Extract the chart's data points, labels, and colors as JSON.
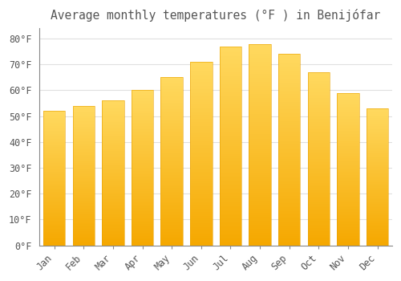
{
  "title": "Average monthly temperatures (°F ) in Benijófar",
  "months": [
    "Jan",
    "Feb",
    "Mar",
    "Apr",
    "May",
    "Jun",
    "Jul",
    "Aug",
    "Sep",
    "Oct",
    "Nov",
    "Dec"
  ],
  "values": [
    52,
    54,
    56,
    60,
    65,
    71,
    77,
    78,
    74,
    67,
    59,
    53
  ],
  "bar_color_top": "#FFD966",
  "bar_color_bottom": "#F5A800",
  "bar_color_mid": "#FFC200",
  "background_color": "#FFFFFF",
  "grid_color": "#E0E0E0",
  "text_color": "#555555",
  "ylim": [
    0,
    84
  ],
  "yticks": [
    0,
    10,
    20,
    30,
    40,
    50,
    60,
    70,
    80
  ],
  "title_fontsize": 10.5,
  "tick_fontsize": 8.5,
  "bar_width": 0.75
}
